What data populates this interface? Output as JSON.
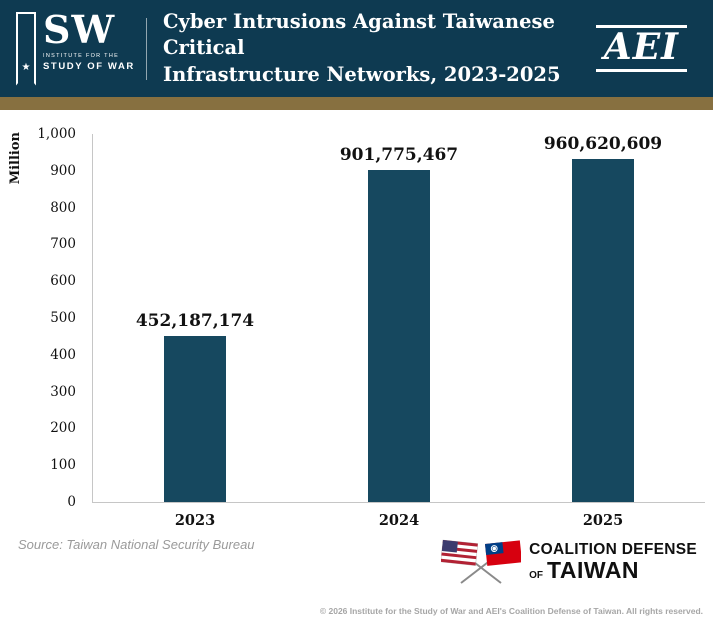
{
  "header": {
    "title_line1": "Cyber Intrusions Against Taiwanese Critical",
    "title_line2": "Infrastructure Networks, 2023-2025",
    "isw": {
      "star": "★",
      "sw": "SW",
      "sub1": "INSTITUTE FOR THE",
      "sub2": "STUDY OF WAR"
    },
    "aei": "AEI",
    "bg_color": "#0e3a51",
    "stripe_color": "#877040"
  },
  "chart_data": {
    "type": "bar",
    "title": "Cyber Intrusions Against Taiwanese Critical Infrastructure Networks, 2023-2025",
    "categories": [
      "2023",
      "2024",
      "2025"
    ],
    "values": [
      452187174,
      901775467,
      960620609
    ],
    "data_labels": [
      "452,187,174",
      "901,775,467",
      "960,620,609"
    ],
    "xlabel": "",
    "ylabel": "Million",
    "ylim": [
      0,
      1000000000
    ],
    "y_ticks": [
      "1,000",
      "900",
      "800",
      "700",
      "600",
      "500",
      "400",
      "300",
      "200",
      "100",
      "0"
    ],
    "bar_color": "#16485f",
    "grid": false,
    "legend": "none"
  },
  "footer": {
    "source": "Source: Taiwan National Security Bureau",
    "coalition": {
      "line1": "COALITION DEFENSE",
      "of": "OF",
      "name": "TAIWAN"
    },
    "copyright": "© 2026 Institute for the Study of War and AEI's Coalition Defense of Taiwan. All rights reserved."
  }
}
